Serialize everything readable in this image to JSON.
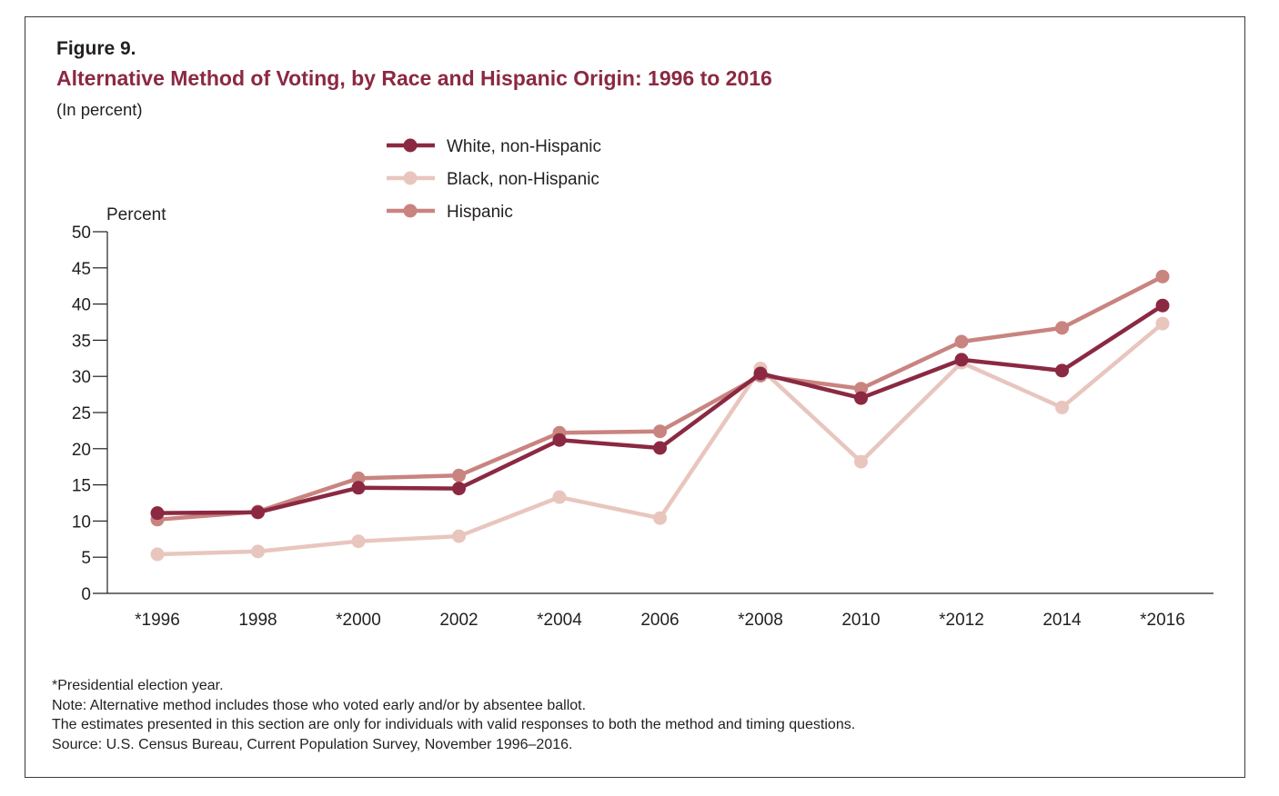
{
  "figure": {
    "label": "Figure 9.",
    "title": "Alternative Method of Voting, by Race and Hispanic Origin: 1996 to 2016",
    "subtitle": "(In percent)"
  },
  "notes": [
    "*Presidential election year.",
    "Note: Alternative method includes those who voted early and/or by absentee ballot.",
    "The estimates presented in this section are only for individuals with valid responses to both the method and timing questions.",
    "Source: U.S. Census Bureau, Current Population Survey, November 1996–2016."
  ],
  "chart_data": {
    "type": "line",
    "title": "",
    "xlabel": "",
    "ylabel": "Percent",
    "ylim": [
      0,
      50
    ],
    "yticks": [
      0,
      5,
      10,
      15,
      20,
      25,
      30,
      35,
      40,
      45,
      50
    ],
    "grid": false,
    "legend_position": "top-center",
    "categories": [
      "*1996",
      "1998",
      "*2000",
      "2002",
      "*2004",
      "2006",
      "*2008",
      "2010",
      "*2012",
      "2014",
      "*2016"
    ],
    "series": [
      {
        "name": "Black, non-Hispanic",
        "color": "#e8c6be",
        "values": [
          5.4,
          5.8,
          7.2,
          7.9,
          13.3,
          10.4,
          31.1,
          18.2,
          31.9,
          25.7,
          37.3
        ]
      },
      {
        "name": "Hispanic",
        "color": "#c98480",
        "values": [
          10.2,
          11.3,
          15.9,
          16.3,
          22.2,
          22.4,
          30.1,
          28.3,
          34.8,
          36.7,
          43.8
        ]
      },
      {
        "name": "White, non-Hispanic",
        "color": "#8b2942",
        "values": [
          11.1,
          11.2,
          14.6,
          14.5,
          21.2,
          20.1,
          30.4,
          27.0,
          32.3,
          30.8,
          39.8
        ]
      }
    ],
    "legend_order": [
      "White, non-Hispanic",
      "Black, non-Hispanic",
      "Hispanic"
    ]
  }
}
